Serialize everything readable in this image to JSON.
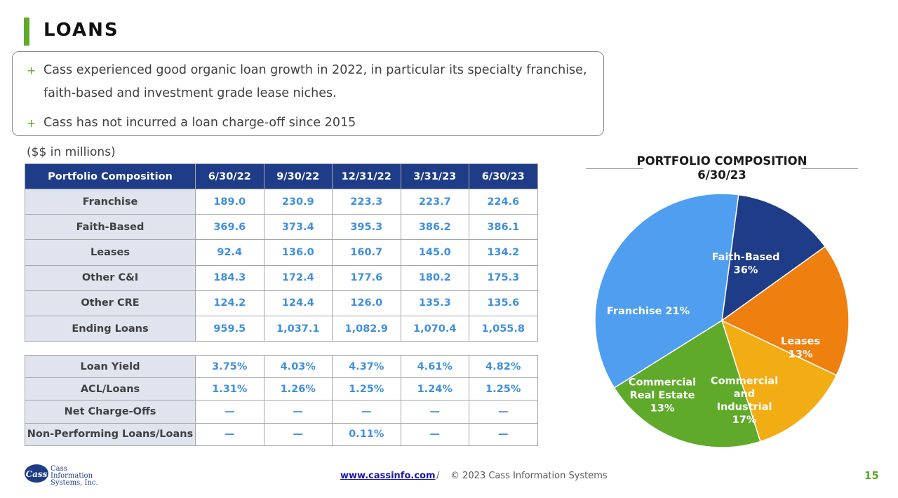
{
  "header": {
    "title": "LOANS"
  },
  "bullets": [
    "Cass experienced good organic loan growth in 2022, in particular its specialty franchise, faith-based and investment grade lease niches.",
    "Cass has not incurred a loan charge-off since 2015"
  ],
  "bullet_marker": "+",
  "units_note": "($$ in millions)",
  "table1": {
    "headers": [
      "Portfolio Composition",
      "6/30/22",
      "9/30/22",
      "12/31/22",
      "3/31/23",
      "6/30/23"
    ],
    "rows": [
      {
        "label": "Franchise",
        "values": [
          "189.0",
          "230.9",
          "223.3",
          "223.7",
          "224.6"
        ]
      },
      {
        "label": "Faith-Based",
        "values": [
          "369.6",
          "373.4",
          "395.3",
          "386.2",
          "386.1"
        ]
      },
      {
        "label": "Leases",
        "values": [
          "92.4",
          "136.0",
          "160.7",
          "145.0",
          "134.2"
        ]
      },
      {
        "label": "Other C&I",
        "values": [
          "184.3",
          "172.4",
          "177.6",
          "180.2",
          "175.3"
        ]
      },
      {
        "label": "Other CRE",
        "values": [
          "124.2",
          "124.4",
          "126.0",
          "135.3",
          "135.6"
        ]
      },
      {
        "label": "Ending Loans",
        "values": [
          "959.5",
          "1,037.1",
          "1,082.9",
          "1,070.4",
          "1,055.8"
        ]
      }
    ]
  },
  "table2": {
    "rows": [
      {
        "label": "Loan Yield",
        "values": [
          "3.75%",
          "4.03%",
          "4.37%",
          "4.61%",
          "4.82%"
        ]
      },
      {
        "label": "ACL/Loans",
        "values": [
          "1.31%",
          "1.26%",
          "1.25%",
          "1.24%",
          "1.25%"
        ]
      },
      {
        "label": "Net Charge-Offs",
        "values": [
          "—",
          "—",
          "—",
          "—",
          "—"
        ]
      },
      {
        "label": "Non-Performing Loans/Loans",
        "values": [
          "—",
          "—",
          "0.11%",
          "—",
          "—"
        ]
      }
    ]
  },
  "pie": {
    "title_line1": "PORTFOLIO COMPOSITION",
    "title_line2": "6/30/23",
    "slices": [
      {
        "name": "Faith-Based",
        "pct_label": "36%",
        "value": 36,
        "color": "#4f9ef0",
        "label_lines": [
          "Faith-Based",
          "36%"
        ]
      },
      {
        "name": "Leases",
        "pct_label": "13%",
        "value": 13,
        "color": "#1f3c88",
        "label_lines": [
          "Leases",
          "13%"
        ]
      },
      {
        "name": "Commercial and Industrial",
        "pct_label": "17%",
        "value": 17,
        "color": "#ef7f0f",
        "label_lines": [
          "Commercial",
          "and",
          "Industrial",
          "17%"
        ]
      },
      {
        "name": "Commercial Real Estate",
        "pct_label": "13%",
        "value": 13,
        "color": "#f2ad14",
        "label_lines": [
          "Commercial",
          "Real Estate",
          "13%"
        ]
      },
      {
        "name": "Franchise",
        "pct_label": "21%",
        "value": 21,
        "color": "#5faa2a",
        "label_lines": [
          "Franchise 21%"
        ]
      }
    ]
  },
  "footer": {
    "logo_text": [
      "Cass",
      "Information",
      "Systems, Inc."
    ],
    "logo_mark": "Cass",
    "link": "www.cassinfo.com",
    "separator": "/",
    "copyright": "© 2023 Cass Information Systems",
    "page_number": "15"
  },
  "colors": {
    "accent_green": "#5faa2a",
    "header_navy": "#1f3c88",
    "value_blue": "#3f8fe0"
  }
}
